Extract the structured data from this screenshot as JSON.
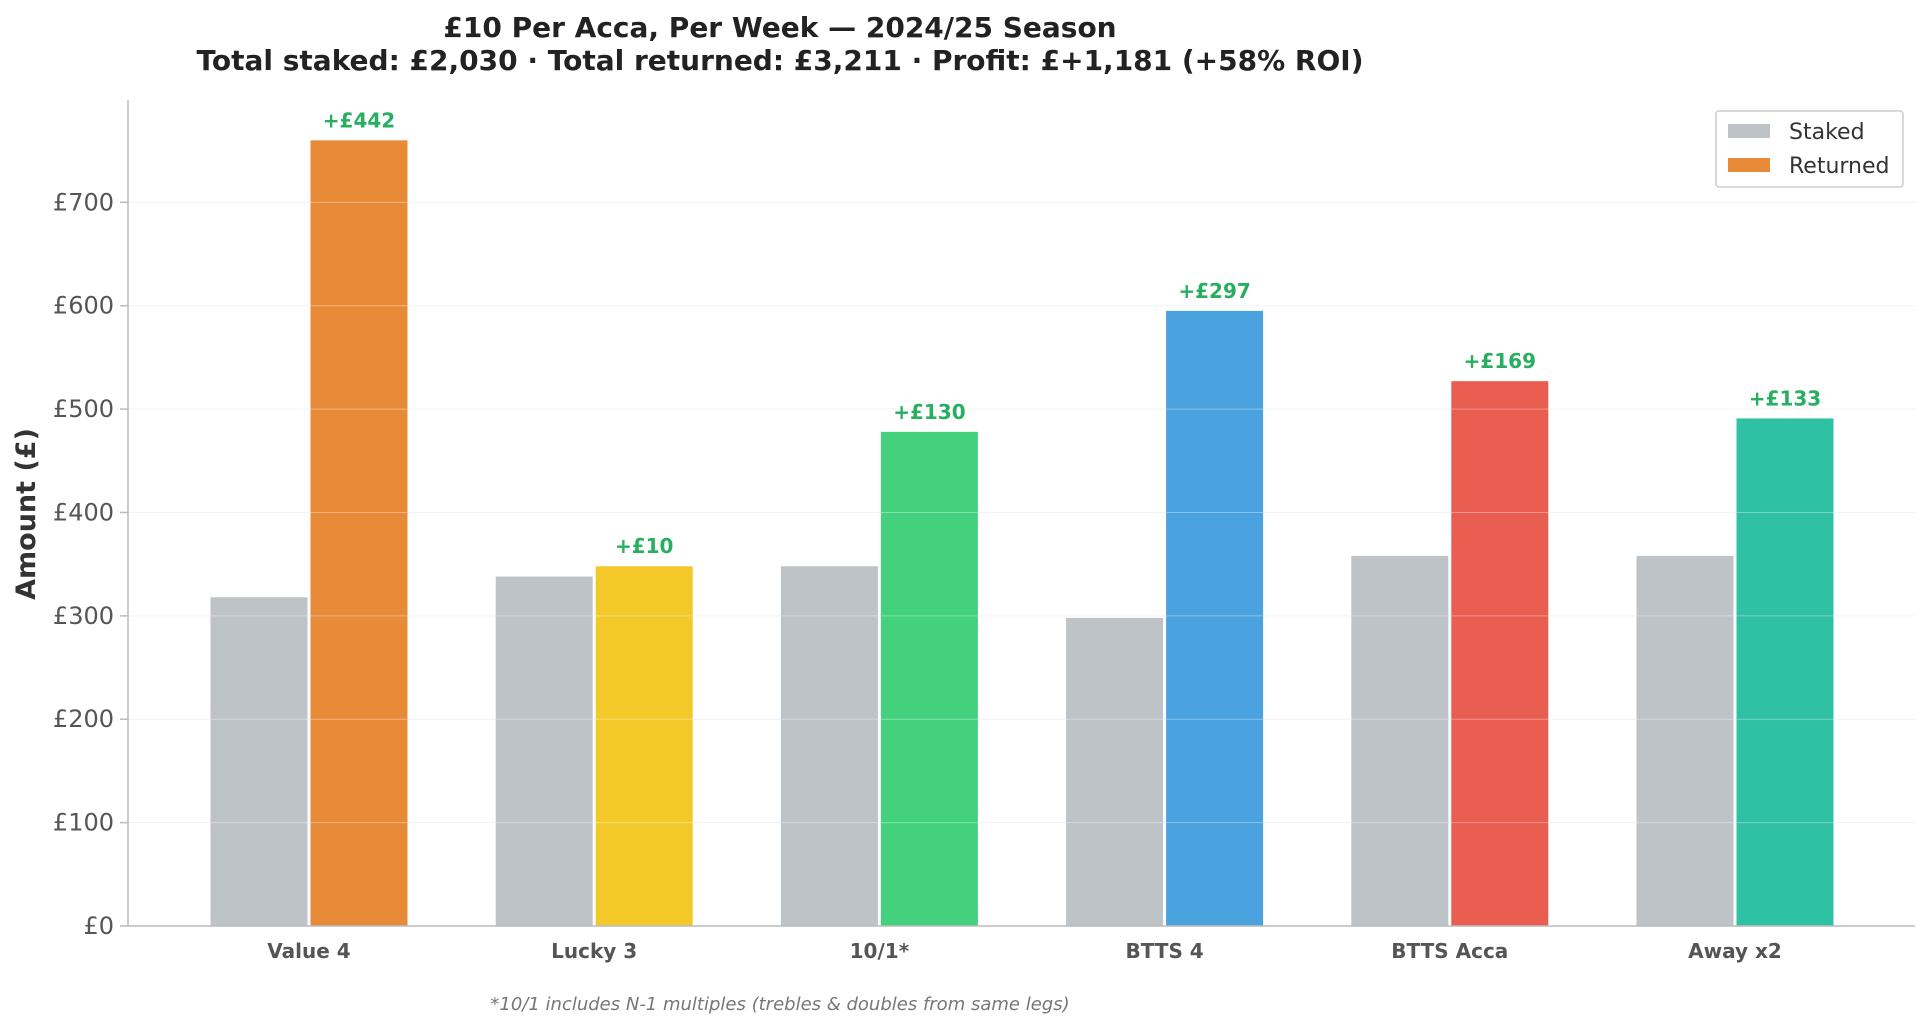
{
  "chart_data": {
    "type": "bar",
    "title": "£10 Per Acca, Per Week — 2024/25 Season",
    "subtitle": "Total staked: £2,030 · Total returned: £3,211 · Profit: £+1,181 (+58% ROI)",
    "ylabel": "Amount (£)",
    "xlabel": "",
    "ylim": [
      0,
      800
    ],
    "y_ticks": [
      0,
      100,
      200,
      300,
      400,
      500,
      600,
      700
    ],
    "y_tick_labels": [
      "£0",
      "£100",
      "£200",
      "£300",
      "£400",
      "£500",
      "£600",
      "£700"
    ],
    "grid": true,
    "legend_position": "top-right",
    "categories": [
      "Value 4",
      "Lucky 3",
      "10/1*",
      "BTTS 4",
      "BTTS Acca",
      "Away x2"
    ],
    "series": [
      {
        "name": "Staked",
        "values": [
          318,
          338,
          348,
          298,
          358,
          358
        ],
        "color": "#bdc3c7"
      },
      {
        "name": "Returned",
        "values": [
          760,
          348,
          478,
          595,
          527,
          491
        ],
        "colors": [
          "#e88b38",
          "#f2c928",
          "#44d17e",
          "#4aa3df",
          "#e95e50",
          "#2fc1a4"
        ],
        "legend_color": "#e88b38"
      }
    ],
    "profit_labels": [
      "+£442",
      "+£10",
      "+£130",
      "+£297",
      "+£169",
      "+£133"
    ],
    "profit_label_color": "#27ae60",
    "footnote": "*10/1 includes N-1 multiples (trebles & doubles from same legs)"
  }
}
